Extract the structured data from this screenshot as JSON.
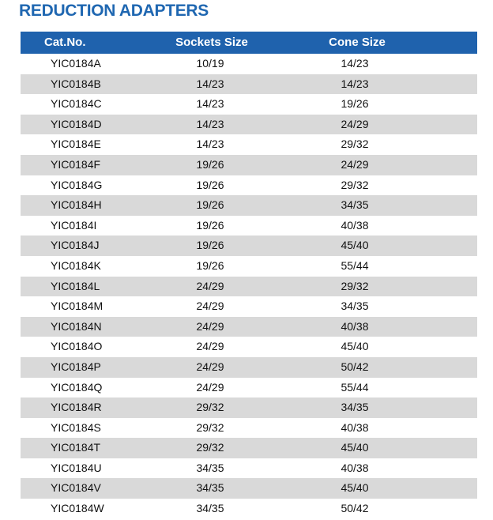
{
  "title": "REDUCTION ADAPTERS",
  "headers": [
    "Cat.No.",
    "Sockets Size",
    "Cone Size"
  ],
  "rows": [
    [
      "YIC0184A",
      "10/19",
      "14/23"
    ],
    [
      "YIC0184B",
      "14/23",
      "14/23"
    ],
    [
      "YIC0184C",
      "14/23",
      "19/26"
    ],
    [
      "YIC0184D",
      "14/23",
      "24/29"
    ],
    [
      "YIC0184E",
      "14/23",
      "29/32"
    ],
    [
      "YIC0184F",
      "19/26",
      "24/29"
    ],
    [
      "YIC0184G",
      "19/26",
      "29/32"
    ],
    [
      "YIC0184H",
      "19/26",
      "34/35"
    ],
    [
      "YIC0184I",
      "19/26",
      "40/38"
    ],
    [
      "YIC0184J",
      "19/26",
      "45/40"
    ],
    [
      "YIC0184K",
      "19/26",
      "55/44"
    ],
    [
      "YIC0184L",
      "24/29",
      "29/32"
    ],
    [
      "YIC0184M",
      "24/29",
      "34/35"
    ],
    [
      "YIC0184N",
      "24/29",
      "40/38"
    ],
    [
      "YIC0184O",
      "24/29",
      "45/40"
    ],
    [
      "YIC0184P",
      "24/29",
      "50/42"
    ],
    [
      "YIC0184Q",
      "24/29",
      "55/44"
    ],
    [
      "YIC0184R",
      "29/32",
      "34/35"
    ],
    [
      "YIC0184S",
      "29/32",
      "40/38"
    ],
    [
      "YIC0184T",
      "29/32",
      "45/40"
    ],
    [
      "YIC0184U",
      "34/35",
      "40/38"
    ],
    [
      "YIC0184V",
      "34/35",
      "45/40"
    ],
    [
      "YIC0184W",
      "34/35",
      "50/42"
    ]
  ],
  "colors": {
    "title": "#1f67b1",
    "header_bg": "#1f62ad",
    "stripe": "#d9d9d9"
  }
}
